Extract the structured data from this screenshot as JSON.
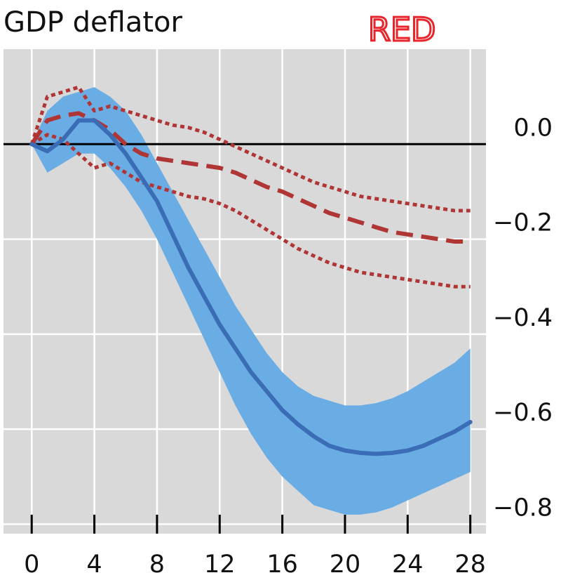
{
  "chart_data": {
    "type": "line",
    "title": "GDP deflator",
    "annotation": "RED",
    "xlabel": "",
    "ylabel": "",
    "x_ticks": [
      0,
      4,
      8,
      12,
      16,
      20,
      24,
      28
    ],
    "y_ticks": [
      0.0,
      -0.2,
      -0.4,
      -0.6,
      -0.8
    ],
    "y_tick_labels": [
      "0.0",
      "−0.2",
      "−0.4",
      "−0.6",
      "−0.8"
    ],
    "xlim": [
      -1.8,
      29
    ],
    "ylim": [
      -0.82,
      0.2
    ],
    "grid": true,
    "colors": {
      "background": "#d9d9d9",
      "band": "#6aade4",
      "median_line": "#3a6db5",
      "comparison": "#b03535",
      "zero_line": "#000000",
      "annotation": "#e8252b"
    },
    "band": {
      "x": [
        0,
        1,
        2,
        3,
        4,
        5,
        6,
        7,
        8,
        9,
        10,
        11,
        12,
        13,
        14,
        15,
        16,
        17,
        18,
        19,
        20,
        21,
        22,
        23,
        24,
        25,
        26,
        27,
        28
      ],
      "upper": [
        0.0,
        0.07,
        0.1,
        0.11,
        0.12,
        0.1,
        0.07,
        0.02,
        -0.04,
        -0.1,
        -0.16,
        -0.22,
        -0.28,
        -0.34,
        -0.39,
        -0.44,
        -0.48,
        -0.51,
        -0.53,
        -0.54,
        -0.55,
        -0.55,
        -0.545,
        -0.535,
        -0.52,
        -0.5,
        -0.48,
        -0.46,
        -0.43
      ],
      "lower": [
        0.0,
        -0.06,
        -0.04,
        -0.02,
        -0.02,
        -0.05,
        -0.09,
        -0.14,
        -0.2,
        -0.27,
        -0.34,
        -0.41,
        -0.48,
        -0.55,
        -0.61,
        -0.66,
        -0.7,
        -0.73,
        -0.76,
        -0.77,
        -0.78,
        -0.78,
        -0.775,
        -0.765,
        -0.75,
        -0.735,
        -0.72,
        -0.705,
        -0.69
      ]
    },
    "series": [
      {
        "style": "solid",
        "x": [
          0,
          1,
          2,
          3,
          4,
          5,
          6,
          7,
          8,
          9,
          10,
          11,
          12,
          13,
          14,
          15,
          16,
          17,
          18,
          19,
          20,
          21,
          22,
          23,
          24,
          25,
          26,
          27,
          28
        ],
        "values": [
          0.0,
          -0.015,
          0.01,
          0.05,
          0.05,
          0.02,
          -0.02,
          -0.07,
          -0.12,
          -0.19,
          -0.26,
          -0.32,
          -0.38,
          -0.43,
          -0.48,
          -0.52,
          -0.56,
          -0.59,
          -0.615,
          -0.635,
          -0.645,
          -0.65,
          -0.652,
          -0.65,
          -0.645,
          -0.635,
          -0.62,
          -0.605,
          -0.585
        ]
      },
      {
        "style": "dashed",
        "x": [
          0,
          1,
          2,
          3,
          4,
          5,
          6,
          7,
          8,
          9,
          10,
          11,
          12,
          13,
          14,
          15,
          16,
          17,
          18,
          19,
          20,
          21,
          22,
          23,
          24,
          25,
          26,
          27,
          28
        ],
        "values": [
          0.0,
          0.05,
          0.06,
          0.065,
          0.05,
          0.03,
          0.0,
          -0.02,
          -0.03,
          -0.035,
          -0.04,
          -0.045,
          -0.05,
          -0.06,
          -0.075,
          -0.09,
          -0.1,
          -0.115,
          -0.13,
          -0.145,
          -0.155,
          -0.165,
          -0.175,
          -0.185,
          -0.19,
          -0.195,
          -0.2,
          -0.205,
          -0.205
        ]
      },
      {
        "style": "dotted",
        "x": [
          0,
          1,
          2,
          3,
          4,
          5,
          6,
          7,
          8,
          9,
          10,
          11,
          12,
          13,
          14,
          15,
          16,
          17,
          18,
          19,
          20,
          21,
          22,
          23,
          24,
          25,
          26,
          27,
          28
        ],
        "values": [
          0.0,
          0.1,
          0.11,
          0.12,
          0.07,
          0.08,
          0.07,
          0.06,
          0.05,
          0.04,
          0.035,
          0.025,
          0.01,
          -0.005,
          -0.02,
          -0.035,
          -0.05,
          -0.065,
          -0.08,
          -0.09,
          -0.1,
          -0.11,
          -0.115,
          -0.12,
          -0.125,
          -0.13,
          -0.135,
          -0.14,
          -0.14
        ]
      },
      {
        "style": "dotted",
        "x": [
          0,
          1,
          2,
          3,
          4,
          5,
          6,
          7,
          8,
          9,
          10,
          11,
          12,
          13,
          14,
          15,
          16,
          17,
          18,
          19,
          20,
          21,
          22,
          23,
          24,
          25,
          26,
          27,
          28
        ],
        "values": [
          0.0,
          0.02,
          0.01,
          -0.02,
          -0.05,
          -0.04,
          -0.06,
          -0.08,
          -0.09,
          -0.1,
          -0.11,
          -0.115,
          -0.125,
          -0.14,
          -0.16,
          -0.18,
          -0.2,
          -0.22,
          -0.235,
          -0.25,
          -0.26,
          -0.27,
          -0.275,
          -0.28,
          -0.285,
          -0.29,
          -0.295,
          -0.3,
          -0.3
        ]
      }
    ]
  }
}
